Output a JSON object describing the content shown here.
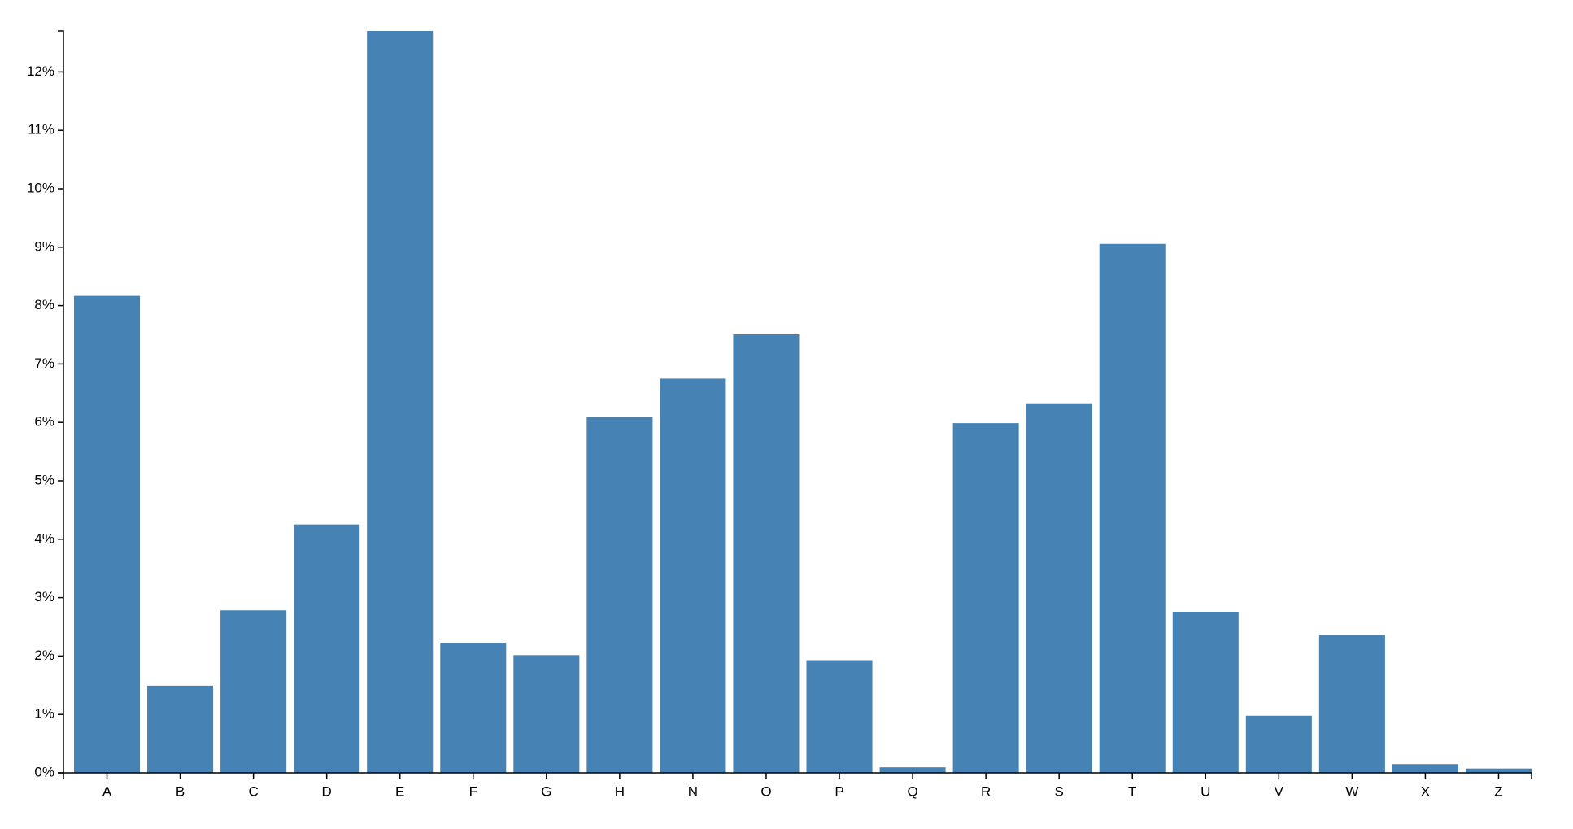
{
  "chart_data": {
    "type": "bar",
    "categories": [
      "A",
      "B",
      "C",
      "D",
      "E",
      "F",
      "G",
      "H",
      "N",
      "O",
      "P",
      "Q",
      "R",
      "S",
      "T",
      "U",
      "V",
      "W",
      "X",
      "Z"
    ],
    "values": [
      8.167,
      1.492,
      2.782,
      4.253,
      12.702,
      2.228,
      2.015,
      6.094,
      6.749,
      7.507,
      1.929,
      0.095,
      5.987,
      6.327,
      9.056,
      2.758,
      0.978,
      2.36,
      0.15,
      0.074
    ],
    "color": "#4682b4",
    "ylim": [
      0,
      12.702
    ],
    "yticks": [
      {
        "value": 0,
        "label": "0%"
      },
      {
        "value": 1,
        "label": "1%"
      },
      {
        "value": 2,
        "label": "2%"
      },
      {
        "value": 3,
        "label": "3%"
      },
      {
        "value": 4,
        "label": "4%"
      },
      {
        "value": 5,
        "label": "5%"
      },
      {
        "value": 6,
        "label": "6%"
      },
      {
        "value": 7,
        "label": "7%"
      },
      {
        "value": 8,
        "label": "8%"
      },
      {
        "value": 9,
        "label": "9%"
      },
      {
        "value": 10,
        "label": "10%"
      },
      {
        "value": 11,
        "label": "11%"
      },
      {
        "value": 12,
        "label": "12%"
      }
    ],
    "grid": false
  }
}
